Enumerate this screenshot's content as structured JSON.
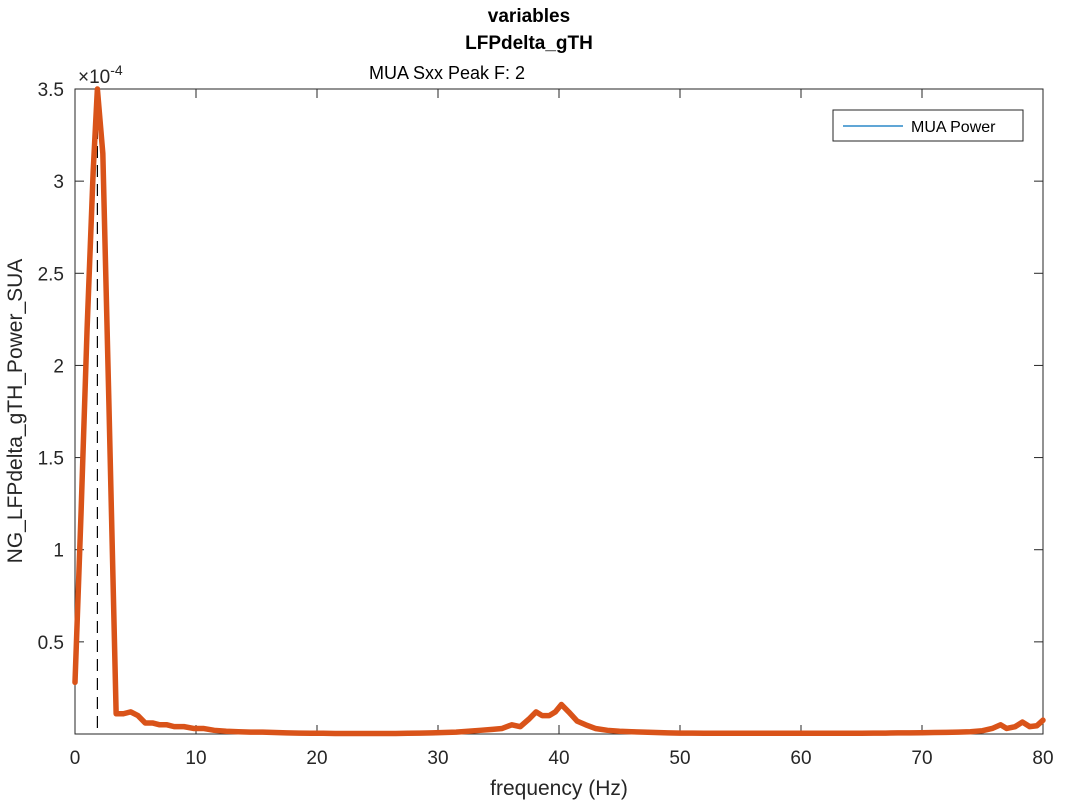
{
  "chart_data": {
    "type": "line",
    "title": "variables",
    "title_line2": "LFPdelta_gTH",
    "subtitle": "MUA Sxx Peak F: 2",
    "xlabel": "frequency (Hz)",
    "ylabel": "NG_LFPdelta_gTH_Power_SUA",
    "y_exponent_prefix": "×10",
    "y_exponent": "-4",
    "xlim": [
      0,
      80
    ],
    "ylim": [
      0,
      3.5
    ],
    "x_ticks": [
      0,
      10,
      20,
      30,
      40,
      50,
      60,
      70,
      80
    ],
    "x_tick_labels": [
      "0",
      "10",
      "20",
      "30",
      "40",
      "50",
      "60",
      "70",
      "80"
    ],
    "y_ticks": [
      0.5,
      1,
      1.5,
      2,
      2.5,
      3,
      3.5
    ],
    "y_tick_labels": [
      "0.5",
      "1",
      "1.5",
      "2",
      "2.5",
      "3",
      "3.5"
    ],
    "grid": false,
    "legend": {
      "entries": [
        "MUA Power"
      ],
      "placement": "top-right",
      "color": "#0072BD"
    },
    "peak_marker": {
      "x": 1.85,
      "style": "dashed",
      "color": "#000000"
    },
    "series": [
      {
        "name": "MUA Power",
        "color": "#D95319",
        "x": [
          0,
          0.5,
          1,
          1.5,
          1.85,
          2.3,
          2.8,
          3.4,
          4,
          4.6,
          5.2,
          5.8,
          6.4,
          7,
          7.6,
          8.2,
          9,
          9.8,
          10.6,
          11.5,
          12.5,
          13.5,
          14.5,
          15.5,
          16.5,
          17.5,
          18.5,
          19.5,
          20.5,
          21.5,
          22.5,
          23.5,
          24.5,
          25.5,
          26.5,
          27.5,
          28.5,
          29.5,
          30.5,
          31.5,
          32.5,
          33.5,
          34.5,
          35.3,
          36.1,
          36.8,
          37.5,
          38.1,
          38.6,
          39.2,
          39.7,
          40.2,
          40.8,
          41.5,
          42.2,
          43,
          44,
          45,
          46,
          47,
          48,
          49,
          50,
          51,
          52,
          53,
          54,
          55,
          56,
          57,
          58,
          59,
          60,
          61,
          62,
          63,
          64,
          65,
          66,
          67,
          68,
          69,
          70,
          71,
          72,
          73,
          74,
          75,
          75.8,
          76.5,
          77,
          77.7,
          78.3,
          78.9,
          79.5,
          80
        ],
        "values": [
          0.28,
          1.2,
          2.2,
          3.05,
          3.5,
          3.15,
          1.8,
          0.11,
          0.11,
          0.12,
          0.1,
          0.06,
          0.06,
          0.05,
          0.05,
          0.04,
          0.04,
          0.03,
          0.03,
          0.02,
          0.015,
          0.012,
          0.01,
          0.01,
          0.008,
          0.006,
          0.005,
          0.004,
          0.004,
          0.003,
          0.003,
          0.003,
          0.003,
          0.003,
          0.003,
          0.004,
          0.005,
          0.006,
          0.008,
          0.01,
          0.015,
          0.02,
          0.025,
          0.03,
          0.05,
          0.04,
          0.08,
          0.12,
          0.1,
          0.1,
          0.12,
          0.16,
          0.12,
          0.07,
          0.05,
          0.03,
          0.02,
          0.015,
          0.012,
          0.01,
          0.008,
          0.006,
          0.005,
          0.005,
          0.004,
          0.004,
          0.004,
          0.004,
          0.004,
          0.004,
          0.004,
          0.004,
          0.004,
          0.004,
          0.004,
          0.004,
          0.004,
          0.004,
          0.005,
          0.005,
          0.006,
          0.006,
          0.007,
          0.008,
          0.009,
          0.01,
          0.012,
          0.018,
          0.03,
          0.05,
          0.03,
          0.04,
          0.065,
          0.04,
          0.045,
          0.075
        ]
      }
    ]
  }
}
